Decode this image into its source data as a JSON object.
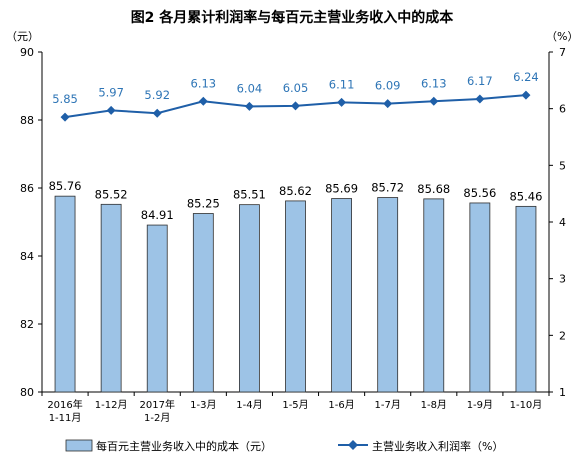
{
  "chart_data": {
    "type": "bar",
    "title": "图2 各月累计利润率与每百元主营业务收入中的成本",
    "left_axis_unit": "（元）",
    "right_axis_unit": "（%）",
    "categories": [
      [
        "2016年",
        "1-11月"
      ],
      [
        "1-12月"
      ],
      [
        "2017年",
        "1-2月"
      ],
      [
        "1-3月"
      ],
      [
        "1-4月"
      ],
      [
        "1-5月"
      ],
      [
        "1-6月"
      ],
      [
        "1-7月"
      ],
      [
        "1-8月"
      ],
      [
        "1-9月"
      ],
      [
        "1-10月"
      ]
    ],
    "left_ylim": [
      80,
      90
    ],
    "left_yticks": [
      80,
      82,
      84,
      86,
      88,
      90
    ],
    "right_ylim": [
      1,
      7
    ],
    "right_yticks": [
      1,
      2,
      3,
      4,
      5,
      6,
      7
    ],
    "series": [
      {
        "name": "每百元主营业务收入中的成本（元）",
        "type": "bar",
        "axis": "left",
        "values": [
          85.76,
          85.52,
          84.91,
          85.25,
          85.51,
          85.62,
          85.69,
          85.72,
          85.68,
          85.56,
          85.46
        ],
        "labels": [
          "85.76",
          "85.52",
          "84.91",
          "85.25",
          "85.51",
          "85.62",
          "85.69",
          "85.72",
          "85.68",
          "85.56",
          "85.46"
        ],
        "color": "#9dc3e6",
        "stroke": "#2f2f2f"
      },
      {
        "name": "主营业务收入利润率（%）",
        "type": "line",
        "axis": "right",
        "values": [
          5.85,
          5.97,
          5.92,
          6.13,
          6.04,
          6.05,
          6.11,
          6.09,
          6.13,
          6.17,
          6.24
        ],
        "labels": [
          "5.85",
          "5.97",
          "5.92",
          "6.13",
          "6.04",
          "6.05",
          "6.11",
          "6.09",
          "6.13",
          "6.17",
          "6.24"
        ],
        "color": "#1f5fa8",
        "label_color": "#2e75b6"
      }
    ],
    "grid": false,
    "legend_position": "bottom"
  }
}
